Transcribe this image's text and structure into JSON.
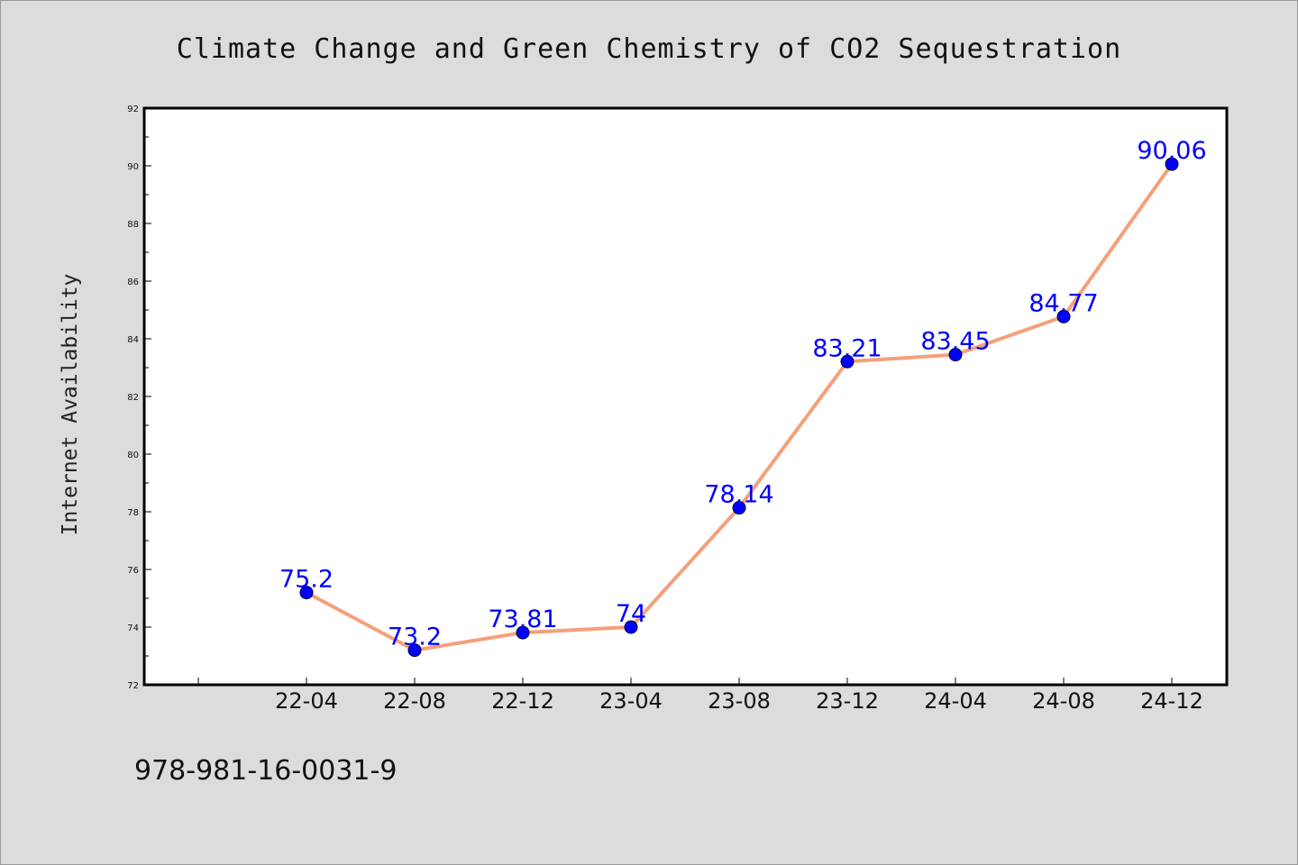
{
  "chart_data": {
    "type": "line",
    "title": "Climate Change and Green Chemistry of CO2 Sequestration",
    "xlabel": "",
    "ylabel": "Internet Availability",
    "categories": [
      "22-04",
      "22-08",
      "22-12",
      "23-04",
      "23-08",
      "23-12",
      "24-04",
      "24-08",
      "24-12"
    ],
    "series": [
      {
        "values": [
          75.2,
          73.2,
          73.81,
          74,
          78.14,
          83.21,
          83.45,
          84.77,
          90.06
        ]
      }
    ],
    "data_labels": [
      "75.2",
      "73.2",
      "73.81",
      "74",
      "78.14",
      "83.21",
      "83.45",
      "84.77",
      "90.06"
    ],
    "ylim": [
      72,
      92
    ],
    "y_ticks": [
      "72",
      "74",
      "76",
      "78",
      "80",
      "82",
      "84",
      "86",
      "88",
      "90",
      "92"
    ],
    "grid": false,
    "legend": "none",
    "colors": {
      "line": "#f4a07a",
      "marker": "#0000ff",
      "data_label": "#0000ff",
      "background": "#dcdcdc",
      "plot_background": "#ffffff"
    },
    "footer_text": "978-981-16-0031-9"
  }
}
